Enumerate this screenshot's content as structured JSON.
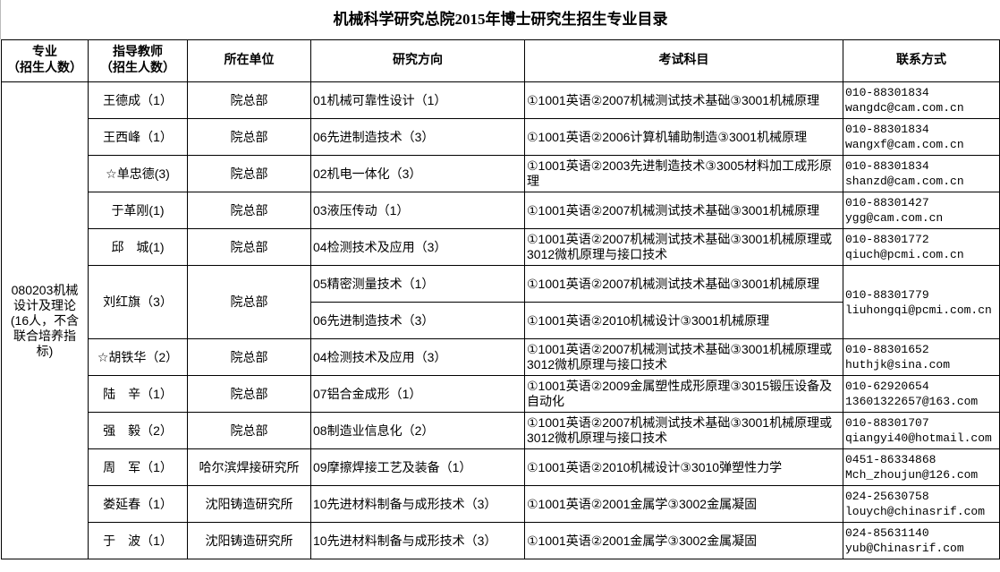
{
  "title": "机械科学研究总院2015年博士研究生招生专业目录",
  "headers": {
    "major": [
      "专业",
      "（招生人数）"
    ],
    "advisor": [
      "指导教师",
      "（招生人数）"
    ],
    "unit": "所在单位",
    "direction": "研究方向",
    "exam": "考试科目",
    "contact": "联系方式"
  },
  "major": "080203机械设计及理论(16人，不含联合培养指标)",
  "rows": [
    {
      "advisor": "王德成（1）",
      "unit": "院总部",
      "directions": [
        {
          "direction": "01机械可靠性设计（1）",
          "exam": "①1001英语②2007机械测试技术基础③3001机械原理"
        }
      ],
      "phone": "010-88301834",
      "email": "wangdc@cam.com.cn"
    },
    {
      "advisor": "王西峰（1）",
      "unit": "院总部",
      "directions": [
        {
          "direction": "06先进制造技术（3）",
          "exam": "①1001英语②2006计算机辅助制造③3001机械原理"
        }
      ],
      "phone": "010-88301834",
      "email": "wangxf@cam.com.cn"
    },
    {
      "advisor": "☆单忠德(3)",
      "unit": "院总部",
      "directions": [
        {
          "direction": "02机电一体化（3）",
          "exam": "①1001英语②2003先进制造技术③3005材料加工成形原理"
        }
      ],
      "phone": "010-88301834",
      "email": "shanzd@cam.com.cn"
    },
    {
      "advisor": "于革刚(1)",
      "unit": "院总部",
      "directions": [
        {
          "direction": "03液压传动（1）",
          "exam": "①1001英语②2007机械测试技术基础③3001机械原理"
        }
      ],
      "phone": "010-88301427",
      "email": "ygg@cam.com.cn"
    },
    {
      "advisor": "邱　城(1)",
      "unit": "院总部",
      "directions": [
        {
          "direction": "04检测技术及应用（3）",
          "exam": "①1001英语②2007机械测试技术基础③3001机械原理或3012微机原理与接口技术"
        }
      ],
      "phone": "010-88301772",
      "email": "qiuch@pcmi.com.cn"
    },
    {
      "advisor": "刘红旗（3）",
      "unit": "院总部",
      "directions": [
        {
          "direction": "05精密测量技术（1）",
          "exam": "①1001英语②2007机械测试技术基础③3001机械原理"
        },
        {
          "direction": "06先进制造技术（3）",
          "exam": "①1001英语②2010机械设计③3001机械原理"
        }
      ],
      "phone": "010-88301779",
      "email": "liuhongqi@pcmi.com.cn"
    },
    {
      "advisor": "☆胡铁华（2）",
      "unit": "院总部",
      "directions": [
        {
          "direction": "04检测技术及应用（3）",
          "exam": "①1001英语②2007机械测试技术基础③3001机械原理或3012微机原理与接口技术"
        }
      ],
      "phone": "010-88301652",
      "email": "huthjk@sina.com"
    },
    {
      "advisor": "陆　辛（1）",
      "unit": "院总部",
      "directions": [
        {
          "direction": "07铝合金成形（1）",
          "exam": "①1001英语②2009金属塑性成形原理③3015锻压设备及自动化"
        }
      ],
      "phone": "010-62920654",
      "email": "13601322657@163.com"
    },
    {
      "advisor": "强　毅（2）",
      "unit": "院总部",
      "directions": [
        {
          "direction": "08制造业信息化（2）",
          "exam": "①1001英语②2007机械测试技术基础③3001机械原理或3012微机原理与接口技术"
        }
      ],
      "phone": "010-88301707",
      "email": "qiangyi40@hotmail.com"
    },
    {
      "advisor": "周　军（1）",
      "unit": "哈尔滨焊接研究所",
      "directions": [
        {
          "direction": "09摩擦焊接工艺及装备（1）",
          "exam": "①1001英语②2010机械设计③3010弹塑性力学"
        }
      ],
      "phone": "0451-86334868",
      "email": "Mch_zhoujun@126.com"
    },
    {
      "advisor": "娄延春（1）",
      "unit": "沈阳铸造研究所",
      "directions": [
        {
          "direction": "10先进材料制备与成形技术（3）",
          "exam": "①1001英语②2001金属学③3002金属凝固"
        }
      ],
      "phone": "024-25630758",
      "email": "louych@chinasrif.com"
    },
    {
      "advisor": "于　波（1）",
      "unit": "沈阳铸造研究所",
      "directions": [
        {
          "direction": "10先进材料制备与成形技术（3）",
          "exam": "①1001英语②2001金属学③3002金属凝固"
        }
      ],
      "phone": "024-85631140",
      "email": "yub@Chinasrif.com"
    }
  ]
}
